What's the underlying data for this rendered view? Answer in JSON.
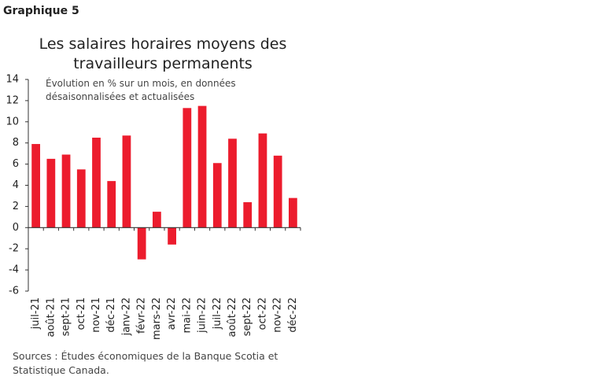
{
  "header": {
    "label": "Graphique 5"
  },
  "chart_data": {
    "type": "bar",
    "title": "Les salaires horaires moyens des travailleurs permanents",
    "subtitle": "Évolution en % sur un mois, en données désaisonnalisées et actualisées",
    "source": "Sources : Études économiques de la Banque Scotia et Statistique Canada.",
    "categories": [
      "juil-21",
      "août-21",
      "sept-21",
      "oct-21",
      "nov-21",
      "déc-21",
      "janv-22",
      "févr-22",
      "mars-22",
      "avr-22",
      "mai-22",
      "juin-22",
      "juil-22",
      "août-22",
      "sept-22",
      "oct-22",
      "nov-22",
      "déc-22"
    ],
    "values": [
      7.9,
      6.5,
      6.9,
      5.5,
      8.5,
      4.4,
      8.7,
      -3.0,
      1.5,
      -1.6,
      11.3,
      11.5,
      6.1,
      8.4,
      2.4,
      8.9,
      6.8,
      2.8
    ],
    "color": "#ec1c2d",
    "ylim": [
      -6,
      14
    ],
    "yticks": [
      -6,
      -4,
      -2,
      0,
      2,
      4,
      6,
      8,
      10,
      12,
      14
    ],
    "grid": false
  }
}
